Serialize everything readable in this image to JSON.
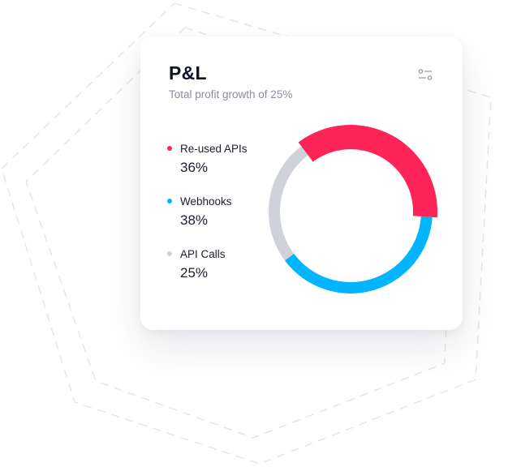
{
  "card": {
    "title": "P&L",
    "subtitle": "Total profit growth of 25%"
  },
  "icons": {
    "filter": "sliders-icon"
  },
  "colors": {
    "accent_red": "#ff2458",
    "accent_blue": "#00b4ff",
    "track_gray": "#cfd2d9"
  },
  "chart_data": {
    "type": "pie",
    "variant": "donut",
    "categories": [
      "Re-used APIs",
      "Webhooks",
      "API Calls"
    ],
    "values": [
      36,
      38,
      25
    ],
    "value_labels": [
      "36%",
      "38%",
      "25%"
    ],
    "colors": [
      "#ff2458",
      "#00b4ff",
      "#cfd2d9"
    ],
    "legend": "left"
  }
}
